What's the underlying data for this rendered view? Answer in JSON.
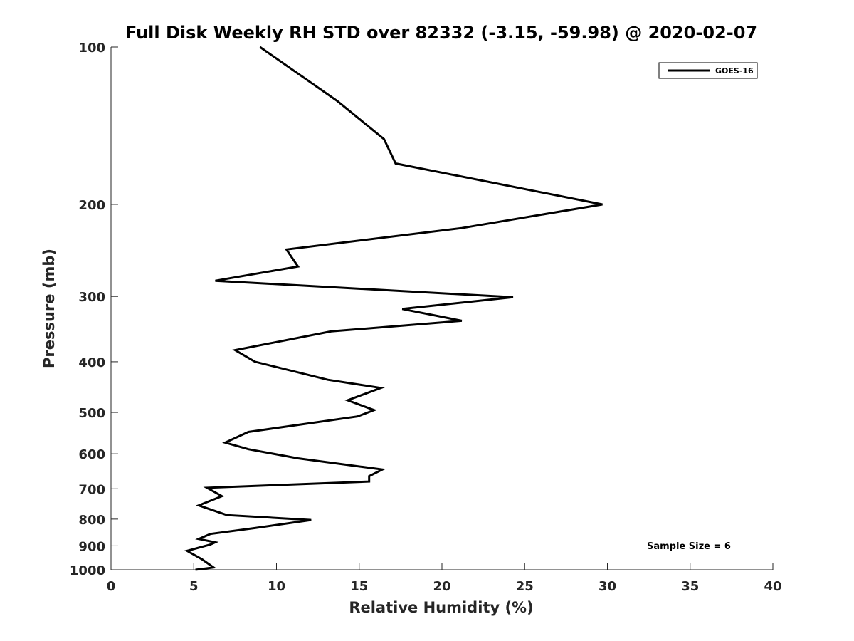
{
  "chart_data": {
    "type": "line",
    "title": "Full Disk Weekly RH STD over 82332 (-3.15, -59.98) @ 2020-02-07",
    "xlabel": "Relative Humidity (%)",
    "ylabel": "Pressure (mb)",
    "xlim": [
      0,
      40
    ],
    "ylim": [
      1000,
      100
    ],
    "y_scale": "log",
    "x_ticks": [
      0,
      5,
      10,
      15,
      20,
      25,
      30,
      35,
      40
    ],
    "x_tick_labels": [
      "0",
      "5",
      "10",
      "15",
      "20",
      "25",
      "30",
      "35",
      "40"
    ],
    "y_ticks": [
      100,
      200,
      300,
      400,
      500,
      600,
      700,
      800,
      900,
      1000
    ],
    "y_tick_labels": [
      "100",
      "200",
      "300",
      "400",
      "500",
      "600",
      "700",
      "800",
      "900",
      "1000"
    ],
    "grid": false,
    "legend_position": "top-right",
    "annotation": "Sample Size = 6",
    "series": [
      {
        "name": "GOES-16",
        "color": "#000000",
        "x": [
          9.0,
          13.7,
          16.5,
          17.2,
          29.7,
          21.2,
          10.6,
          11.3,
          6.3,
          24.3,
          17.6,
          21.2,
          13.3,
          7.5,
          8.7,
          13.1,
          16.3,
          14.3,
          15.9,
          14.9,
          8.3,
          6.9,
          8.3,
          11.3,
          16.4,
          15.6,
          15.6,
          5.8,
          6.7,
          5.3,
          7.0,
          12.1,
          8.7,
          6.0,
          5.3,
          6.3,
          6.0,
          4.6,
          5.5,
          6.2,
          5.1
        ],
        "y": [
          100,
          127,
          150,
          167,
          200,
          222,
          244,
          263,
          280,
          301,
          317,
          334,
          350,
          380,
          400,
          433,
          449,
          474,
          495,
          509,
          545,
          571,
          588,
          612,
          643,
          662,
          678,
          697,
          723,
          753,
          786,
          803,
          832,
          854,
          873,
          886,
          895,
          920,
          955,
          990,
          1000
        ]
      }
    ]
  }
}
